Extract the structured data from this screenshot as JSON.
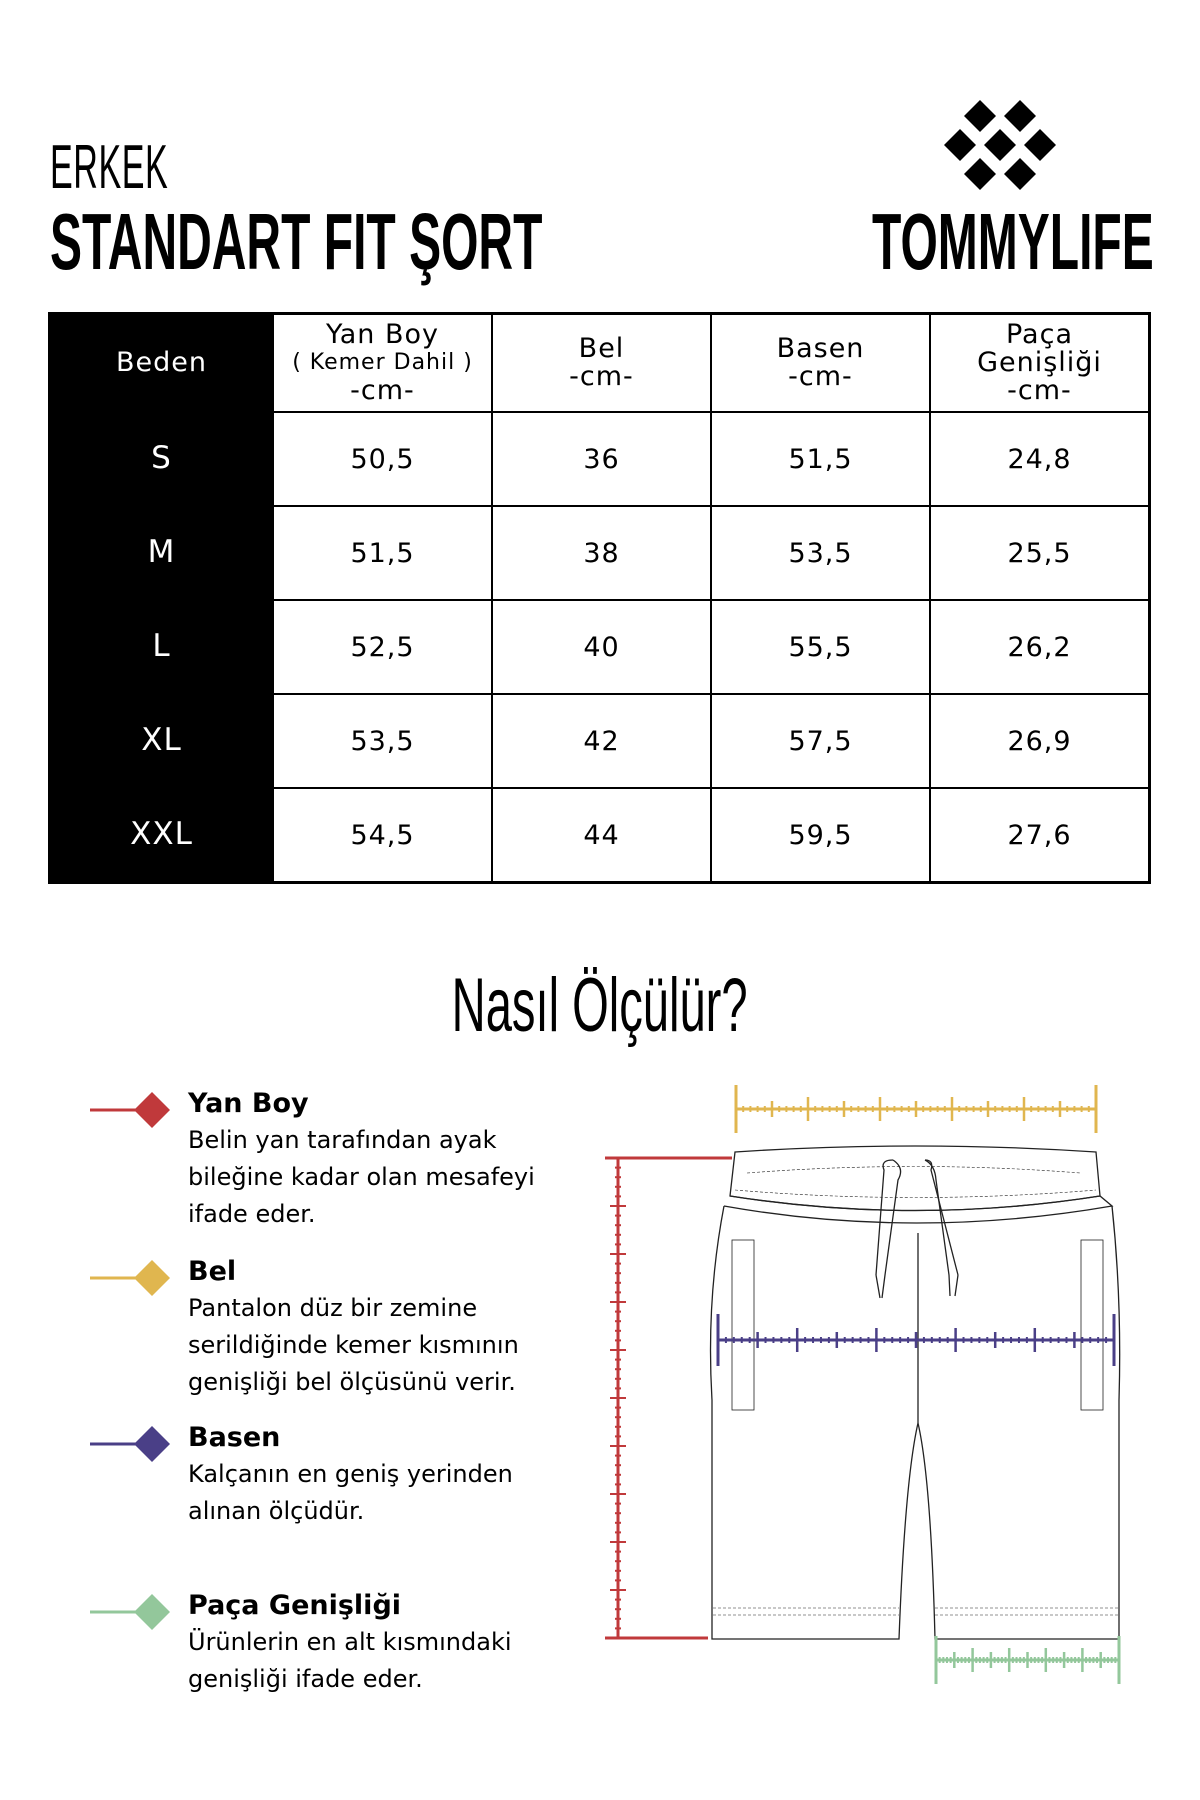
{
  "header": {
    "subtitle": "ERKEK",
    "title": "STANDART FIT ŞORT",
    "brand": "TOMMYLIFE"
  },
  "table": {
    "columns": [
      {
        "lines": [
          "Beden"
        ]
      },
      {
        "lines": [
          "Yan Boy",
          "( Kemer Dahil )",
          "-cm-"
        ]
      },
      {
        "lines": [
          "Bel",
          "-cm-"
        ]
      },
      {
        "lines": [
          "Basen",
          "-cm-"
        ]
      },
      {
        "lines": [
          "Paça",
          "Genişliği",
          "-cm-"
        ]
      }
    ],
    "rows": [
      [
        "S",
        "50,5",
        "36",
        "51,5",
        "24,8"
      ],
      [
        "M",
        "51,5",
        "38",
        "53,5",
        "25,5"
      ],
      [
        "L",
        "52,5",
        "40",
        "55,5",
        "26,2"
      ],
      [
        "XL",
        "53,5",
        "42",
        "57,5",
        "26,9"
      ],
      [
        "XXL",
        "54,5",
        "44",
        "59,5",
        "27,6"
      ]
    ]
  },
  "how_title": "Nasıl Ölçülür?",
  "legend": [
    {
      "title": "Yan Boy",
      "text": "Belin yan tarafından ayak bileğine kadar olan mesafeyi ifade eder.",
      "color": "#c0393b"
    },
    {
      "title": "Bel",
      "text": "Pantalon düz bir zemine serildiğinde kemer kısmının genişliği bel ölçüsünü verir.",
      "color": "#e0b64f"
    },
    {
      "title": "Basen",
      "text": "Kalçanın en geniş yerinden alınan ölçüdür.",
      "color": "#4a3f87"
    },
    {
      "title": "Paça Genişliği",
      "text": "Ürünlerin en alt kısmındaki genişliği ifade eder.",
      "color": "#93c79b"
    }
  ]
}
